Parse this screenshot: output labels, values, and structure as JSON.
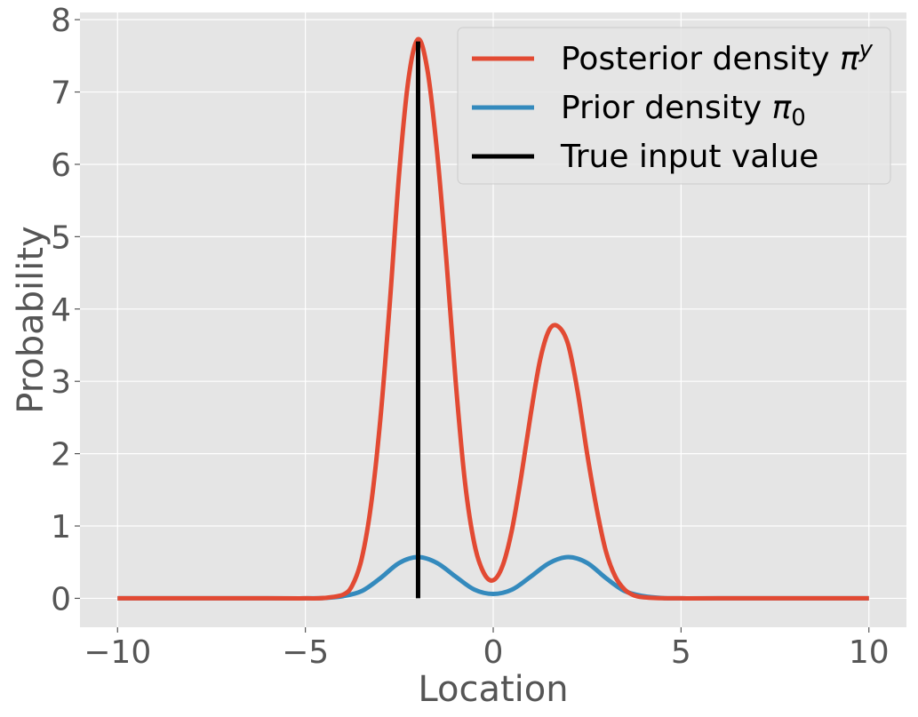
{
  "chart_data": {
    "type": "line",
    "xlabel": "Location",
    "ylabel": "Probability",
    "xlim": [
      -11,
      11
    ],
    "ylim": [
      -0.4,
      8.1
    ],
    "x_ticks": [
      -10,
      -5,
      0,
      5,
      10
    ],
    "x_tick_labels": [
      "−10",
      "−5",
      "0",
      "5",
      "10"
    ],
    "y_ticks": [
      0,
      1,
      2,
      3,
      4,
      5,
      6,
      7,
      8
    ],
    "y_tick_labels": [
      "0",
      "1",
      "2",
      "3",
      "4",
      "5",
      "6",
      "7",
      "8"
    ],
    "grid": true,
    "legend_position": "upper right",
    "style": {
      "background": "#E5E5E5",
      "grid_color": "#FFFFFF"
    },
    "series": [
      {
        "name": "Posterior density πʸ",
        "legend_main": "Posterior density ",
        "legend_symbol": "π",
        "legend_sup": "y",
        "color": "#E24A33",
        "x": [
          -10,
          -6,
          -5,
          -4.5,
          -4,
          -3.75,
          -3.5,
          -3.25,
          -3,
          -2.75,
          -2.5,
          -2.25,
          -2,
          -1.75,
          -1.5,
          -1.25,
          -1,
          -0.75,
          -0.5,
          -0.25,
          0,
          0.25,
          0.5,
          0.75,
          1,
          1.25,
          1.5,
          1.75,
          2,
          2.25,
          2.5,
          2.75,
          3,
          3.25,
          3.5,
          3.75,
          4,
          4.5,
          5,
          6,
          10
        ],
        "y": [
          0,
          0,
          0,
          0.005,
          0.05,
          0.18,
          0.55,
          1.3,
          2.5,
          4.1,
          5.9,
          7.2,
          7.73,
          7.3,
          6.2,
          4.7,
          3.0,
          1.6,
          0.75,
          0.35,
          0.25,
          0.45,
          0.95,
          1.7,
          2.55,
          3.3,
          3.72,
          3.75,
          3.5,
          2.85,
          2.0,
          1.25,
          0.65,
          0.3,
          0.12,
          0.04,
          0.015,
          0.002,
          0,
          0,
          0
        ]
      },
      {
        "name": "Prior density π₀",
        "legend_main": "Prior density ",
        "legend_symbol": "π",
        "legend_sub": "0",
        "color": "#348ABD",
        "x": [
          -10,
          -6,
          -5,
          -4.5,
          -4,
          -3.5,
          -3,
          -2.5,
          -2,
          -1.5,
          -1,
          -0.5,
          0,
          0.5,
          1,
          1.5,
          2,
          2.5,
          3,
          3.5,
          4,
          4.5,
          5,
          6,
          10
        ],
        "y": [
          0,
          0,
          0,
          0.004,
          0.03,
          0.1,
          0.28,
          0.49,
          0.57,
          0.49,
          0.3,
          0.12,
          0.06,
          0.12,
          0.3,
          0.49,
          0.57,
          0.49,
          0.28,
          0.1,
          0.03,
          0.004,
          0,
          0,
          0
        ]
      },
      {
        "name": "True input value",
        "legend_main": "True input value",
        "color": "#000000",
        "x": [
          -2,
          -2
        ],
        "y": [
          0,
          7.7
        ]
      }
    ]
  }
}
